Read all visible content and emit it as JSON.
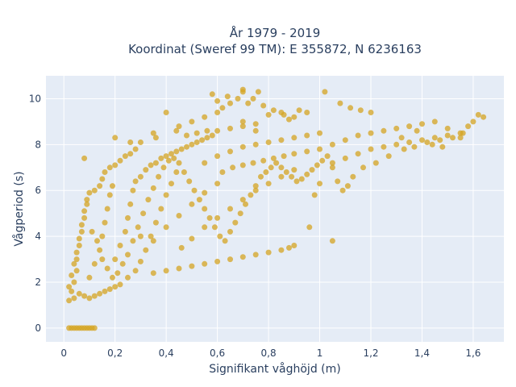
{
  "chart_data": {
    "type": "scatter",
    "title": "År 1979 - 2019",
    "subtitle": "Koordinat (Sweref 99 TM): E 355872, N 6236163",
    "xlabel": "Signifikant våghöjd (m)",
    "ylabel": "Vågperiod (s)",
    "xlim": [
      -0.07,
      1.72
    ],
    "ylim": [
      -0.6,
      11.0
    ],
    "x_ticks": [
      0,
      0.2,
      0.4,
      0.6,
      0.8,
      1,
      1.2,
      1.4,
      1.6
    ],
    "x_tick_labels": [
      "0",
      "0,2",
      "0,4",
      "0,6",
      "0,8",
      "1",
      "1,2",
      "1,4",
      "1,6"
    ],
    "y_ticks": [
      0,
      2,
      4,
      6,
      8,
      10
    ],
    "y_tick_labels": [
      "0",
      "2",
      "4",
      "6",
      "8",
      "10"
    ],
    "grid": true,
    "marker_color": "#d4a421",
    "background_color": "#e5ecf6",
    "series": [
      {
        "points": [
          [
            0.02,
            1.2
          ],
          [
            0.03,
            1.6
          ],
          [
            0.04,
            2.0
          ],
          [
            0.05,
            2.5
          ],
          [
            0.05,
            3.0
          ],
          [
            0.06,
            3.6
          ],
          [
            0.07,
            4.2
          ],
          [
            0.08,
            4.8
          ],
          [
            0.09,
            5.4
          ],
          [
            0.1,
            5.9
          ],
          [
            0.04,
            1.3
          ],
          [
            0.06,
            1.5
          ],
          [
            0.08,
            1.4
          ],
          [
            0.1,
            1.3
          ],
          [
            0.12,
            1.4
          ],
          [
            0.14,
            1.5
          ],
          [
            0.16,
            1.6
          ],
          [
            0.18,
            1.7
          ],
          [
            0.2,
            1.8
          ],
          [
            0.22,
            1.9
          ],
          [
            0.1,
            2.2
          ],
          [
            0.12,
            2.8
          ],
          [
            0.14,
            3.4
          ],
          [
            0.15,
            4.0
          ],
          [
            0.16,
            4.6
          ],
          [
            0.17,
            5.2
          ],
          [
            0.18,
            5.8
          ],
          [
            0.19,
            6.2
          ],
          [
            0.2,
            3.0
          ],
          [
            0.22,
            3.6
          ],
          [
            0.24,
            4.2
          ],
          [
            0.25,
            4.8
          ],
          [
            0.26,
            5.4
          ],
          [
            0.27,
            6.0
          ],
          [
            0.28,
            6.4
          ],
          [
            0.3,
            6.6
          ],
          [
            0.32,
            6.9
          ],
          [
            0.34,
            7.1
          ],
          [
            0.36,
            7.2
          ],
          [
            0.38,
            7.4
          ],
          [
            0.25,
            2.2
          ],
          [
            0.28,
            2.5
          ],
          [
            0.3,
            2.9
          ],
          [
            0.32,
            3.4
          ],
          [
            0.34,
            4.0
          ],
          [
            0.36,
            4.6
          ],
          [
            0.38,
            5.2
          ],
          [
            0.4,
            5.8
          ],
          [
            0.42,
            6.3
          ],
          [
            0.44,
            6.8
          ],
          [
            0.4,
            7.5
          ],
          [
            0.42,
            7.6
          ],
          [
            0.44,
            7.7
          ],
          [
            0.46,
            7.8
          ],
          [
            0.48,
            7.9
          ],
          [
            0.5,
            8.0
          ],
          [
            0.52,
            8.1
          ],
          [
            0.54,
            8.2
          ],
          [
            0.56,
            8.3
          ],
          [
            0.58,
            8.4
          ],
          [
            0.35,
            2.4
          ],
          [
            0.4,
            2.5
          ],
          [
            0.45,
            2.6
          ],
          [
            0.5,
            2.7
          ],
          [
            0.55,
            2.8
          ],
          [
            0.6,
            2.9
          ],
          [
            0.65,
            3.0
          ],
          [
            0.7,
            3.1
          ],
          [
            0.75,
            3.2
          ],
          [
            0.8,
            3.3
          ],
          [
            0.85,
            3.4
          ],
          [
            0.88,
            3.5
          ],
          [
            0.9,
            3.6
          ],
          [
            0.3,
            4.0
          ],
          [
            0.35,
            3.8
          ],
          [
            0.4,
            4.4
          ],
          [
            0.45,
            4.9
          ],
          [
            0.5,
            5.4
          ],
          [
            0.55,
            5.9
          ],
          [
            0.6,
            6.3
          ],
          [
            0.46,
            3.5
          ],
          [
            0.5,
            3.9
          ],
          [
            0.55,
            4.4
          ],
          [
            0.6,
            4.8
          ],
          [
            0.65,
            5.2
          ],
          [
            0.7,
            5.6
          ],
          [
            0.75,
            6.0
          ],
          [
            0.8,
            6.3
          ],
          [
            0.85,
            6.6
          ],
          [
            0.9,
            6.9
          ],
          [
            0.62,
            6.8
          ],
          [
            0.66,
            7.0
          ],
          [
            0.7,
            7.1
          ],
          [
            0.74,
            7.2
          ],
          [
            0.78,
            7.3
          ],
          [
            0.82,
            7.4
          ],
          [
            0.86,
            7.5
          ],
          [
            0.9,
            7.6
          ],
          [
            0.95,
            7.7
          ],
          [
            1.0,
            7.8
          ],
          [
            0.55,
            7.2
          ],
          [
            0.6,
            7.5
          ],
          [
            0.65,
            7.7
          ],
          [
            0.7,
            7.9
          ],
          [
            0.75,
            8.0
          ],
          [
            0.8,
            8.1
          ],
          [
            0.85,
            8.2
          ],
          [
            0.9,
            8.3
          ],
          [
            0.95,
            8.4
          ],
          [
            1.0,
            8.5
          ],
          [
            1.05,
            7.2
          ],
          [
            1.1,
            7.4
          ],
          [
            1.15,
            7.6
          ],
          [
            1.2,
            7.8
          ],
          [
            1.25,
            7.9
          ],
          [
            1.3,
            8.0
          ],
          [
            1.35,
            8.1
          ],
          [
            1.4,
            8.2
          ],
          [
            1.45,
            8.3
          ],
          [
            1.5,
            8.4
          ],
          [
            1.05,
            8.0
          ],
          [
            1.1,
            8.2
          ],
          [
            1.15,
            8.4
          ],
          [
            1.2,
            8.5
          ],
          [
            1.25,
            8.6
          ],
          [
            1.3,
            8.7
          ],
          [
            1.35,
            8.8
          ],
          [
            1.4,
            8.9
          ],
          [
            1.45,
            9.0
          ],
          [
            1.5,
            8.7
          ],
          [
            1.55,
            8.5
          ],
          [
            1.58,
            8.8
          ],
          [
            1.6,
            9.0
          ],
          [
            1.62,
            9.3
          ],
          [
            1.64,
            9.2
          ],
          [
            1.55,
            8.3
          ],
          [
            1.48,
            7.9
          ],
          [
            1.44,
            8.0
          ],
          [
            1.38,
            8.6
          ],
          [
            1.32,
            8.3
          ],
          [
            0.6,
            8.6
          ],
          [
            0.65,
            8.7
          ],
          [
            0.7,
            8.8
          ],
          [
            0.75,
            8.9
          ],
          [
            0.8,
            9.3
          ],
          [
            0.85,
            9.4
          ],
          [
            0.9,
            9.2
          ],
          [
            0.95,
            9.4
          ],
          [
            0.92,
            9.5
          ],
          [
            0.88,
            9.1
          ],
          [
            0.6,
            9.4
          ],
          [
            0.62,
            9.6
          ],
          [
            0.65,
            9.8
          ],
          [
            0.68,
            10.0
          ],
          [
            0.7,
            10.3
          ],
          [
            0.7,
            10.4
          ],
          [
            0.74,
            10.0
          ],
          [
            0.78,
            9.7
          ],
          [
            0.82,
            9.5
          ],
          [
            0.86,
            9.3
          ],
          [
            0.58,
            10.2
          ],
          [
            0.6,
            9.9
          ],
          [
            0.64,
            10.1
          ],
          [
            0.72,
            9.8
          ],
          [
            0.76,
            10.3
          ],
          [
            1.02,
            10.3
          ],
          [
            1.08,
            9.8
          ],
          [
            1.12,
            9.6
          ],
          [
            1.16,
            9.5
          ],
          [
            1.2,
            9.4
          ],
          [
            0.12,
            6.0
          ],
          [
            0.14,
            6.2
          ],
          [
            0.15,
            6.5
          ],
          [
            0.16,
            6.8
          ],
          [
            0.18,
            7.0
          ],
          [
            0.2,
            7.1
          ],
          [
            0.22,
            7.3
          ],
          [
            0.24,
            7.5
          ],
          [
            0.26,
            7.6
          ],
          [
            0.28,
            7.8
          ],
          [
            0.08,
            7.4
          ],
          [
            0.2,
            8.3
          ],
          [
            0.26,
            8.1
          ],
          [
            0.3,
            8.1
          ],
          [
            0.36,
            8.3
          ],
          [
            0.4,
            9.4
          ],
          [
            0.44,
            8.6
          ],
          [
            0.48,
            8.4
          ],
          [
            0.52,
            8.5
          ],
          [
            0.56,
            8.6
          ],
          [
            0.02,
            0
          ],
          [
            0.03,
            0
          ],
          [
            0.04,
            0
          ],
          [
            0.05,
            0
          ],
          [
            0.06,
            0
          ],
          [
            0.07,
            0
          ],
          [
            0.08,
            0
          ],
          [
            0.09,
            0
          ],
          [
            0.1,
            0
          ],
          [
            0.11,
            0
          ],
          [
            0.12,
            0
          ],
          [
            0.02,
            1.8
          ],
          [
            0.03,
            2.3
          ],
          [
            0.04,
            2.8
          ],
          [
            0.05,
            3.3
          ],
          [
            0.06,
            3.9
          ],
          [
            0.07,
            4.5
          ],
          [
            0.08,
            5.1
          ],
          [
            0.09,
            5.6
          ],
          [
            0.11,
            4.2
          ],
          [
            0.13,
            3.8
          ],
          [
            0.15,
            3.0
          ],
          [
            0.17,
            2.6
          ],
          [
            0.19,
            2.2
          ],
          [
            0.21,
            2.4
          ],
          [
            0.23,
            2.8
          ],
          [
            0.25,
            3.2
          ],
          [
            0.27,
            3.8
          ],
          [
            0.29,
            4.4
          ],
          [
            0.31,
            5.0
          ],
          [
            0.33,
            5.6
          ],
          [
            0.35,
            6.1
          ],
          [
            0.37,
            6.6
          ],
          [
            0.39,
            7.0
          ],
          [
            0.41,
            7.3
          ],
          [
            0.43,
            7.4
          ],
          [
            0.45,
            7.2
          ],
          [
            0.47,
            6.8
          ],
          [
            0.49,
            6.4
          ],
          [
            0.51,
            6.0
          ],
          [
            0.53,
            5.6
          ],
          [
            0.55,
            5.2
          ],
          [
            0.57,
            4.8
          ],
          [
            0.59,
            4.4
          ],
          [
            0.61,
            4.0
          ],
          [
            0.63,
            3.8
          ],
          [
            0.65,
            4.2
          ],
          [
            0.67,
            4.6
          ],
          [
            0.69,
            5.0
          ],
          [
            0.71,
            5.4
          ],
          [
            0.73,
            5.8
          ],
          [
            0.75,
            6.2
          ],
          [
            0.77,
            6.6
          ],
          [
            0.79,
            6.8
          ],
          [
            0.81,
            7.0
          ],
          [
            0.83,
            7.2
          ],
          [
            0.85,
            7.0
          ],
          [
            0.87,
            6.8
          ],
          [
            0.89,
            6.6
          ],
          [
            0.91,
            6.4
          ],
          [
            0.93,
            6.5
          ],
          [
            0.95,
            6.7
          ],
          [
            0.97,
            6.9
          ],
          [
            0.99,
            7.1
          ],
          [
            1.01,
            7.3
          ],
          [
            1.03,
            7.5
          ],
          [
            1.05,
            7.0
          ],
          [
            1.07,
            6.4
          ],
          [
            1.09,
            6.0
          ],
          [
            1.11,
            6.2
          ],
          [
            1.13,
            6.6
          ],
          [
            1.17,
            7.0
          ],
          [
            1.22,
            7.2
          ],
          [
            1.27,
            7.5
          ],
          [
            1.33,
            7.8
          ],
          [
            1.37,
            7.9
          ],
          [
            1.42,
            8.1
          ],
          [
            1.47,
            8.2
          ],
          [
            1.52,
            8.3
          ],
          [
            1.56,
            8.5
          ],
          [
            1.05,
            3.8
          ],
          [
            0.96,
            4.4
          ],
          [
            0.98,
            5.8
          ],
          [
            1.0,
            6.3
          ],
          [
            0.7,
            9.0
          ],
          [
            0.75,
            8.6
          ],
          [
            0.5,
            9.0
          ],
          [
            0.55,
            9.2
          ],
          [
            0.45,
            8.8
          ],
          [
            0.35,
            8.5
          ]
        ]
      }
    ]
  }
}
